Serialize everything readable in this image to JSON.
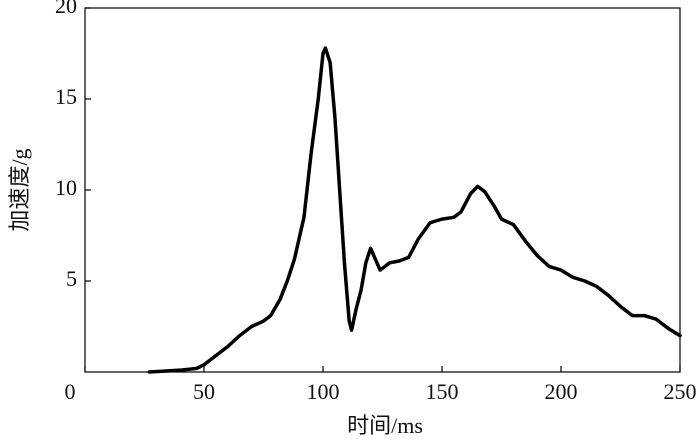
{
  "chart_data": {
    "type": "line",
    "xlabel": "时间/ms",
    "ylabel": "加速度/g",
    "x": [
      27,
      40,
      47,
      50,
      55,
      60,
      65,
      70,
      75,
      78,
      82,
      85,
      88,
      92,
      95,
      98,
      100,
      101,
      103,
      105,
      107,
      109,
      111,
      112,
      114,
      116,
      118,
      120,
      122,
      124,
      128,
      132,
      136,
      140,
      145,
      150,
      155,
      158,
      162,
      165,
      168,
      172,
      175,
      180,
      185,
      190,
      195,
      200,
      205,
      210,
      215,
      220,
      225,
      230,
      235,
      240,
      245,
      250
    ],
    "series": [
      {
        "color": "#000000",
        "values": [
          0,
          0.1,
          0.2,
          0.4,
          0.9,
          1.4,
          2,
          2.5,
          2.8,
          3.1,
          4,
          5,
          6.2,
          8.5,
          12,
          15,
          17.5,
          17.8,
          17,
          14,
          10,
          6,
          2.8,
          2.3,
          3.5,
          4.5,
          6,
          6.8,
          6.2,
          5.6,
          6,
          6.1,
          6.3,
          7.3,
          8.2,
          8.4,
          8.5,
          8.8,
          9.8,
          10.2,
          9.9,
          9.1,
          8.4,
          8.1,
          7.2,
          6.4,
          5.8,
          5.6,
          5.2,
          5,
          4.7,
          4.2,
          3.6,
          3.1,
          3.1,
          2.9,
          2.4,
          2
        ]
      }
    ],
    "xlim": [
      0,
      250
    ],
    "xticks": [
      0,
      50,
      100,
      150,
      200,
      250
    ],
    "ylim": [
      0,
      20
    ],
    "yticks": [
      5,
      10,
      15,
      20
    ]
  }
}
